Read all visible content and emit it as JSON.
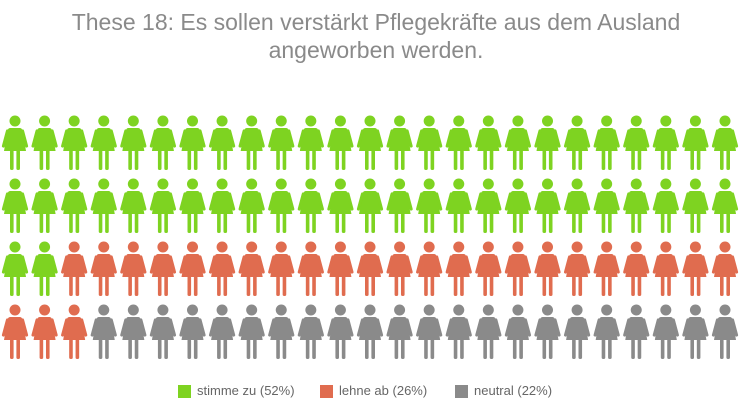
{
  "chart_data": {
    "type": "pictogram",
    "title": [
      "These 18: Es sollen verstärkt Pflegekräfte aus dem Ausland",
      "angeworben werden."
    ],
    "columns": 25,
    "series": [
      {
        "name": "stimme zu",
        "color": "#7ed321",
        "values": 52,
        "value_labels": "(52%)"
      },
      {
        "name": "lehne ab",
        "color": "#e06c4f",
        "values": 26,
        "value_labels": "(26%)"
      },
      {
        "name": "neutral",
        "color": "#8a8a8a",
        "values": 22,
        "value_labels": "(22%)"
      }
    ]
  }
}
